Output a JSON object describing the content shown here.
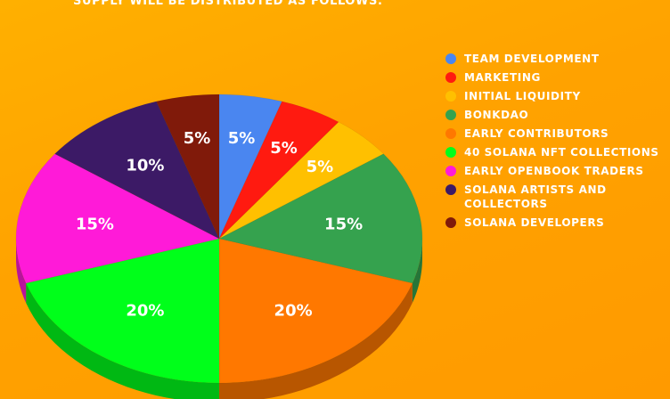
{
  "header": {
    "text": "SUPPLY WILL BE DISTRIBUTED AS FOLLOWS:"
  },
  "chart_data": {
    "type": "pie",
    "title": "",
    "slices": [
      {
        "label": "TEAM DEVELOPMENT",
        "value": 5,
        "display": "5%",
        "color": "#4a86f0"
      },
      {
        "label": "MARKETING",
        "value": 5,
        "display": "5%",
        "color": "#ff1a10"
      },
      {
        "label": "INITIAL LIQUIDITY",
        "value": 5,
        "display": "5%",
        "color": "#ffc000"
      },
      {
        "label": "BONKDAO",
        "value": 15,
        "display": "15%",
        "color": "#35a24e"
      },
      {
        "label": "EARLY CONTRIBUTORS",
        "value": 20,
        "display": "20%",
        "color": "#ff7800"
      },
      {
        "label": "40 SOLANA NFT COLLECTIONS",
        "value": 20,
        "display": "20%",
        "color": "#00ff1a"
      },
      {
        "label": "EARLY OPENBOOK TRADERS",
        "value": 15,
        "display": "15%",
        "color": "#ff1ad8"
      },
      {
        "label": "SOLANA ARTISTS AND COLLECTORS",
        "value": 10,
        "display": "10%",
        "color": "#3c1a66"
      },
      {
        "label": "SOLANA DEVELOPERS",
        "value": 5,
        "display": "5%",
        "color": "#801a0a"
      }
    ],
    "legend_position": "right"
  }
}
